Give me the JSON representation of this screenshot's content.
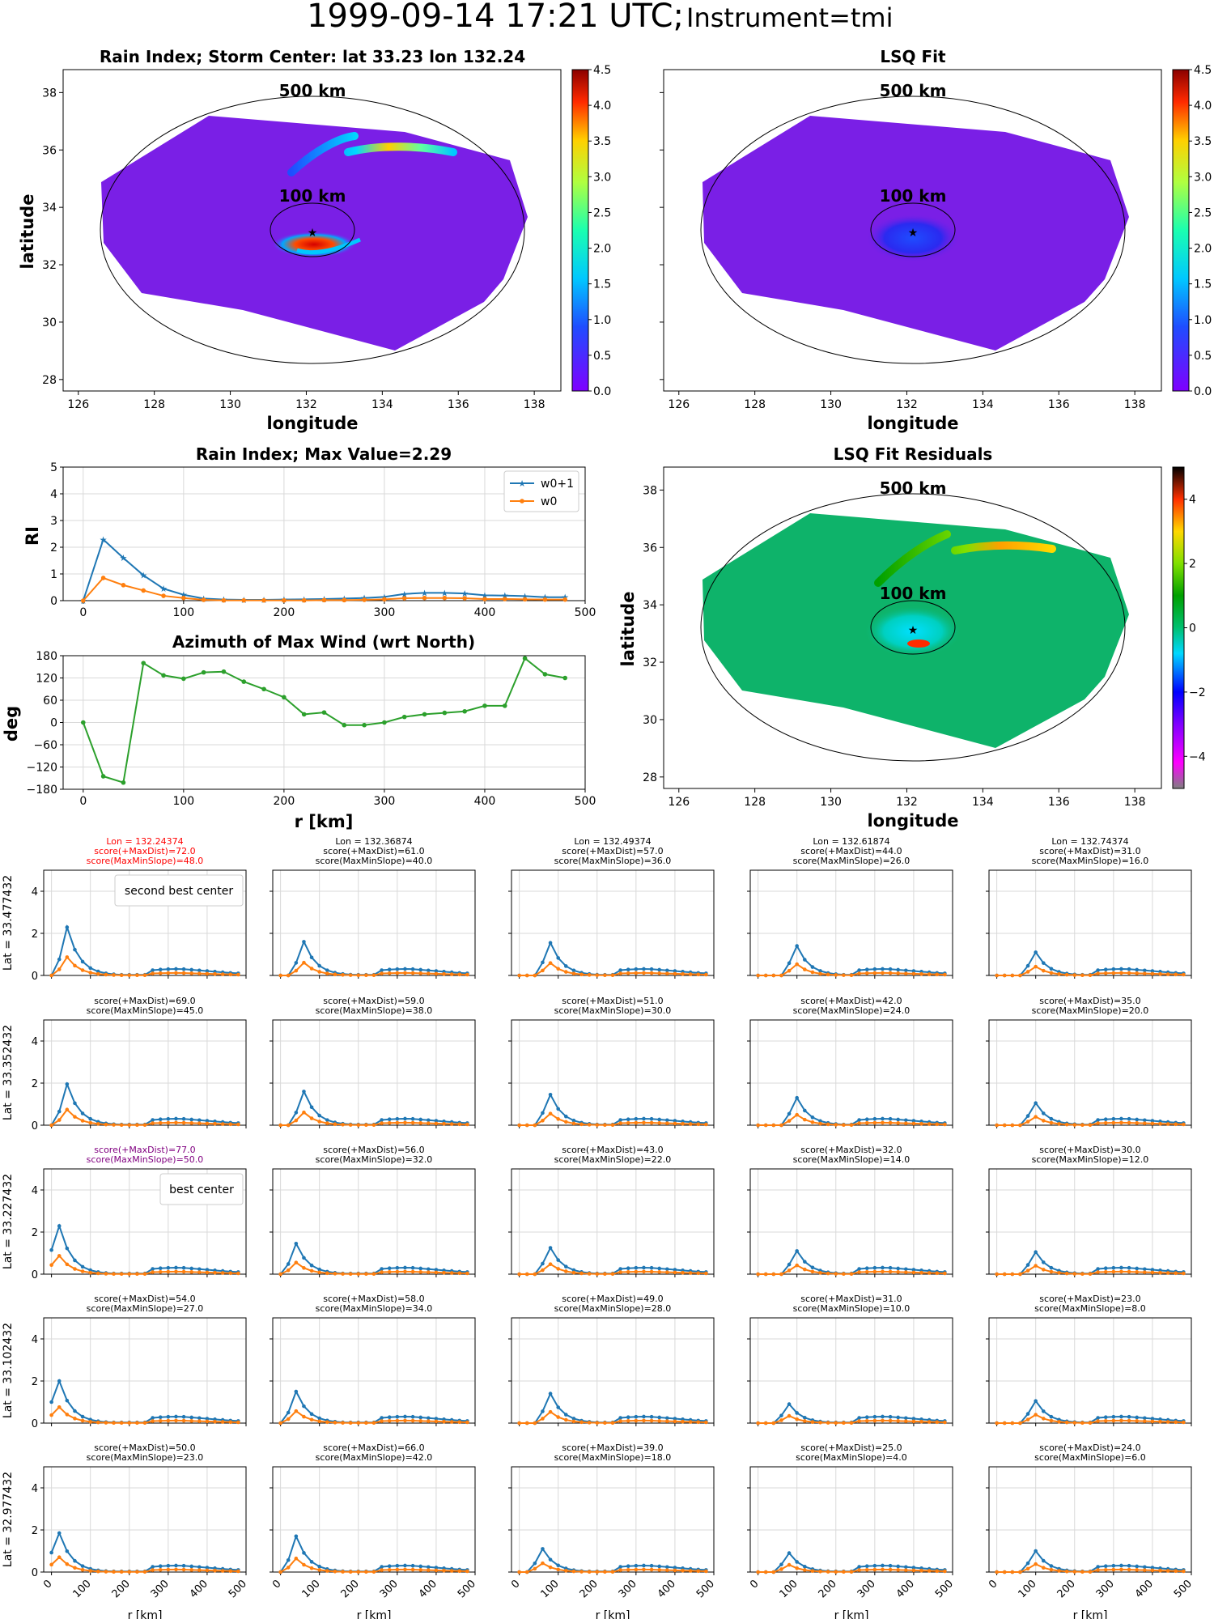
{
  "title": "1999-09-14 17:21 UTC;",
  "title_instrument": "Instrument=tmi",
  "colors": {
    "blue": "#1f77b4",
    "orange": "#ff7f0e",
    "green": "#2ca02c",
    "red": "#ff0000",
    "purple": "#800080",
    "background_field": "#7a1fe6",
    "residual_field": "#0eb36a"
  },
  "maps": [
    {
      "title": "Rain Index; Storm Center: lat 33.23 lon 132.24",
      "xlabel": "longitude",
      "ylabel": "latitude",
      "ring_outer": "500 km",
      "ring_inner": "100 km",
      "storm_center": {
        "lon": 132.24,
        "lat": 33.23
      },
      "colorbar": {
        "ticks": [
          "0.0",
          "0.5",
          "1.0",
          "1.5",
          "2.0",
          "2.5",
          "3.0",
          "3.5",
          "4.0",
          "4.5"
        ],
        "range": [
          0,
          4.5
        ],
        "colormap": "rainbow"
      }
    },
    {
      "title": "LSQ Fit",
      "xlabel": "longitude",
      "ylabel": "",
      "ring_outer": "500 km",
      "ring_inner": "100 km",
      "storm_center": {
        "lon": 132.24,
        "lat": 33.23
      },
      "colorbar": {
        "ticks": [
          "0.0",
          "0.5",
          "1.0",
          "1.5",
          "2.0",
          "2.5",
          "3.0",
          "3.5",
          "4.0",
          "4.5"
        ],
        "range": [
          0,
          4.5
        ],
        "colormap": "rainbow"
      }
    },
    {
      "title": "LSQ Fit Residuals",
      "xlabel": "longitude",
      "ylabel": "latitude",
      "ring_outer": "500 km",
      "ring_inner": "100 km",
      "storm_center": {
        "lon": 132.24,
        "lat": 33.23
      },
      "colorbar": {
        "ticks": [
          "−4",
          "−2",
          "0",
          "2",
          "4"
        ],
        "range": [
          -5,
          5
        ],
        "colormap": "gist_ncar"
      }
    }
  ],
  "map_axes": {
    "xticks": [
      "126",
      "128",
      "130",
      "132",
      "134",
      "136",
      "138"
    ],
    "xlim": [
      125.6,
      138.7
    ],
    "yticks": [
      "28",
      "30",
      "32",
      "34",
      "36",
      "38"
    ],
    "ylim": [
      27.6,
      38.8
    ]
  },
  "chart_data": [
    {
      "type": "line",
      "title": "Rain Index; Max Value=2.29",
      "xlabel": "",
      "ylabel": "RI",
      "xlim": [
        -20,
        500
      ],
      "ylim": [
        0,
        5
      ],
      "xticks": [
        "0",
        "100",
        "200",
        "300",
        "400",
        "500"
      ],
      "yticks": [
        "0",
        "1",
        "2",
        "3",
        "4",
        "5"
      ],
      "grid": true,
      "legend": "top-right",
      "x": [
        0,
        20,
        40,
        60,
        80,
        100,
        120,
        140,
        160,
        180,
        200,
        220,
        240,
        260,
        280,
        300,
        320,
        340,
        360,
        380,
        400,
        420,
        440,
        460,
        480
      ],
      "series": [
        {
          "name": "w0+1",
          "color": "#1f77b4",
          "marker": "star",
          "values": [
            0,
            2.29,
            1.6,
            0.95,
            0.45,
            0.22,
            0.08,
            0.04,
            0.03,
            0.03,
            0.04,
            0.05,
            0.06,
            0.08,
            0.1,
            0.14,
            0.25,
            0.29,
            0.29,
            0.27,
            0.2,
            0.19,
            0.17,
            0.13,
            0.13
          ]
        },
        {
          "name": "w0",
          "color": "#ff7f0e",
          "marker": "dot",
          "values": [
            0,
            0.85,
            0.58,
            0.38,
            0.18,
            0.1,
            0.03,
            0.01,
            0.01,
            0.01,
            0.01,
            0.01,
            0.02,
            0.02,
            0.03,
            0.05,
            0.09,
            0.1,
            0.1,
            0.09,
            0.06,
            0.06,
            0.05,
            0.04,
            0.04
          ]
        }
      ]
    },
    {
      "type": "line",
      "title": "Azimuth of Max Wind (wrt North)",
      "xlabel": "r [km]",
      "ylabel": "deg",
      "xlim": [
        -20,
        500
      ],
      "ylim": [
        -180,
        180
      ],
      "xticks": [
        "0",
        "100",
        "200",
        "300",
        "400",
        "500"
      ],
      "yticks": [
        "−180",
        "−120",
        "−60",
        "0",
        "60",
        "120",
        "180"
      ],
      "grid": true,
      "x": [
        0,
        20,
        40,
        60,
        80,
        100,
        120,
        140,
        160,
        180,
        200,
        220,
        240,
        260,
        280,
        300,
        320,
        340,
        360,
        380,
        400,
        420,
        440,
        460,
        480
      ],
      "series": [
        {
          "color": "#2ca02c",
          "values": [
            0,
            -145,
            -162,
            160,
            127,
            118,
            135,
            137,
            110,
            90,
            68,
            22,
            27,
            -7,
            -7,
            0,
            15,
            22,
            26,
            30,
            45,
            45,
            173,
            130,
            120
          ]
        }
      ]
    },
    {
      "type": "line",
      "grid_of_panels": true,
      "xlabel": "r [km]",
      "xlim": [
        -20,
        500
      ],
      "ylim": [
        0,
        5
      ],
      "xticks": [
        "0",
        "100",
        "200",
        "300",
        "400",
        "500"
      ],
      "yticks": [
        "0",
        "2",
        "4"
      ],
      "grid": true,
      "x": [
        0,
        20,
        40,
        60,
        80,
        100,
        120,
        140,
        160,
        180,
        200,
        220,
        240,
        260,
        280,
        300,
        320,
        340,
        360,
        380,
        400,
        420,
        440,
        460,
        480
      ],
      "columns": [
        {
          "lon_label": "Lon = 132.24374",
          "highlight": "red"
        },
        {
          "lon_label": "Lon = 132.36874"
        },
        {
          "lon_label": "Lon = 132.49374"
        },
        {
          "lon_label": "Lon = 132.61874"
        },
        {
          "lon_label": "Lon = 132.74374"
        }
      ],
      "rows": [
        {
          "lat_label": "Lat = 33.477432",
          "panels": [
            {
              "score_maxdist": "score(+MaxDist)=72.0",
              "score_slope": "score(MaxMinSlope)=48.0",
              "peak": 2.29,
              "peak_r": 40,
              "note": "second best center",
              "title_color": "#ff0000"
            },
            {
              "score_maxdist": "score(+MaxDist)=61.0",
              "score_slope": "score(MaxMinSlope)=40.0",
              "peak": 1.6,
              "peak_r": 60
            },
            {
              "score_maxdist": "score(+MaxDist)=57.0",
              "score_slope": "score(MaxMinSlope)=36.0",
              "peak": 1.55,
              "peak_r": 80
            },
            {
              "score_maxdist": "score(+MaxDist)=44.0",
              "score_slope": "score(MaxMinSlope)=26.0",
              "peak": 1.4,
              "peak_r": 100
            },
            {
              "score_maxdist": "score(+MaxDist)=31.0",
              "score_slope": "score(MaxMinSlope)=16.0",
              "peak": 1.1,
              "peak_r": 100
            }
          ]
        },
        {
          "lat_label": "Lat = 33.352432",
          "panels": [
            {
              "score_maxdist": "score(+MaxDist)=69.0",
              "score_slope": "score(MaxMinSlope)=45.0",
              "peak": 1.95,
              "peak_r": 40
            },
            {
              "score_maxdist": "score(+MaxDist)=59.0",
              "score_slope": "score(MaxMinSlope)=38.0",
              "peak": 1.6,
              "peak_r": 60
            },
            {
              "score_maxdist": "score(+MaxDist)=51.0",
              "score_slope": "score(MaxMinSlope)=30.0",
              "peak": 1.45,
              "peak_r": 80
            },
            {
              "score_maxdist": "score(+MaxDist)=42.0",
              "score_slope": "score(MaxMinSlope)=24.0",
              "peak": 1.3,
              "peak_r": 100
            },
            {
              "score_maxdist": "score(+MaxDist)=35.0",
              "score_slope": "score(MaxMinSlope)=20.0",
              "peak": 1.05,
              "peak_r": 100
            }
          ]
        },
        {
          "lat_label": "Lat = 33.227432",
          "panels": [
            {
              "score_maxdist": "score(+MaxDist)=77.0",
              "score_slope": "score(MaxMinSlope)=50.0",
              "peak": 2.29,
              "peak_r": 20,
              "note": "best center",
              "title_color": "#800080"
            },
            {
              "score_maxdist": "score(+MaxDist)=56.0",
              "score_slope": "score(MaxMinSlope)=32.0",
              "peak": 1.45,
              "peak_r": 40
            },
            {
              "score_maxdist": "score(+MaxDist)=43.0",
              "score_slope": "score(MaxMinSlope)=22.0",
              "peak": 1.25,
              "peak_r": 80
            },
            {
              "score_maxdist": "score(+MaxDist)=32.0",
              "score_slope": "score(MaxMinSlope)=14.0",
              "peak": 1.1,
              "peak_r": 100
            },
            {
              "score_maxdist": "score(+MaxDist)=30.0",
              "score_slope": "score(MaxMinSlope)=12.0",
              "peak": 1.05,
              "peak_r": 100
            }
          ]
        },
        {
          "lat_label": "Lat = 33.102432",
          "panels": [
            {
              "score_maxdist": "score(+MaxDist)=54.0",
              "score_slope": "score(MaxMinSlope)=27.0",
              "peak": 2.0,
              "peak_r": 20
            },
            {
              "score_maxdist": "score(+MaxDist)=58.0",
              "score_slope": "score(MaxMinSlope)=34.0",
              "peak": 1.5,
              "peak_r": 40
            },
            {
              "score_maxdist": "score(+MaxDist)=49.0",
              "score_slope": "score(MaxMinSlope)=28.0",
              "peak": 1.4,
              "peak_r": 80
            },
            {
              "score_maxdist": "score(+MaxDist)=31.0",
              "score_slope": "score(MaxMinSlope)=10.0",
              "peak": 0.9,
              "peak_r": 80
            },
            {
              "score_maxdist": "score(+MaxDist)=23.0",
              "score_slope": "score(MaxMinSlope)=8.0",
              "peak": 1.05,
              "peak_r": 100
            }
          ]
        },
        {
          "lat_label": "Lat = 32.977432",
          "panels": [
            {
              "score_maxdist": "score(+MaxDist)=50.0",
              "score_slope": "score(MaxMinSlope)=23.0",
              "peak": 1.85,
              "peak_r": 20
            },
            {
              "score_maxdist": "score(+MaxDist)=66.0",
              "score_slope": "score(MaxMinSlope)=42.0",
              "peak": 1.7,
              "peak_r": 40
            },
            {
              "score_maxdist": "score(+MaxDist)=39.0",
              "score_slope": "score(MaxMinSlope)=18.0",
              "peak": 1.1,
              "peak_r": 60
            },
            {
              "score_maxdist": "score(+MaxDist)=25.0",
              "score_slope": "score(MaxMinSlope)=4.0",
              "peak": 0.9,
              "peak_r": 80
            },
            {
              "score_maxdist": "score(+MaxDist)=24.0",
              "score_slope": "score(MaxMinSlope)=6.0",
              "peak": 1.0,
              "peak_r": 100
            }
          ]
        }
      ]
    }
  ]
}
